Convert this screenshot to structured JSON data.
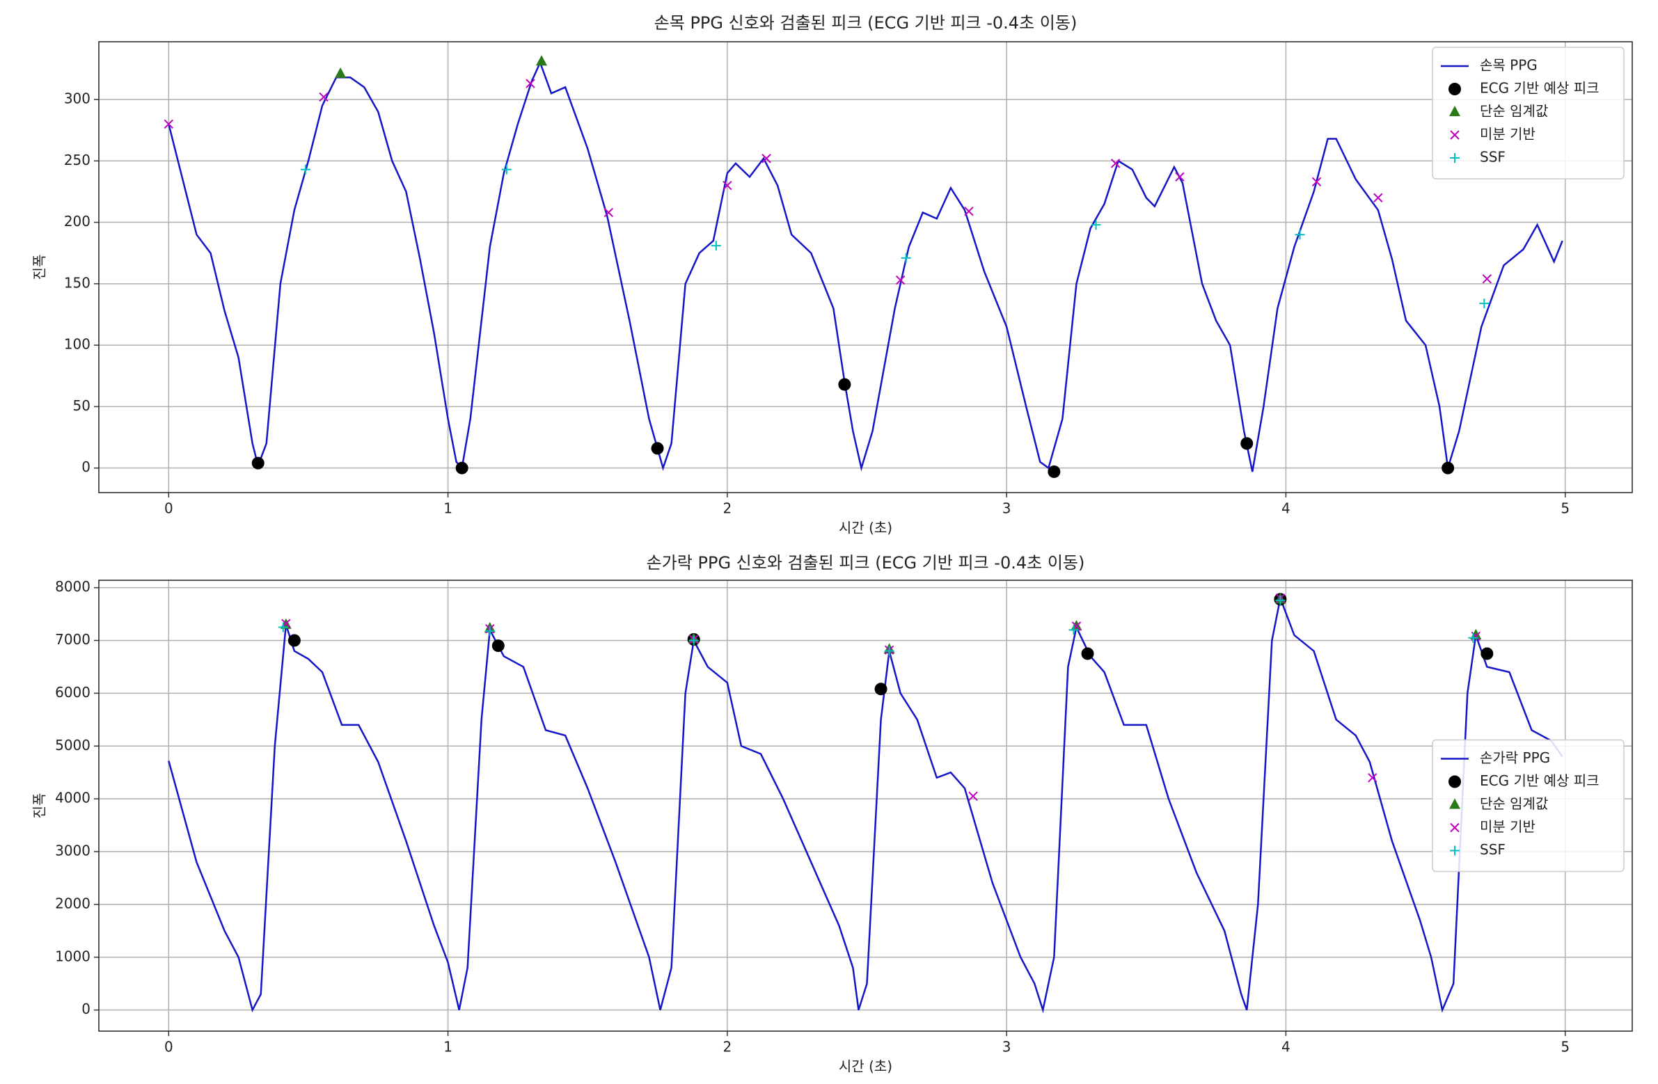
{
  "chart_data": [
    {
      "type": "line",
      "title": "손목 PPG 신호와 검출된 피크 (ECG 기반 피크 -0.4초 이동)",
      "xlabel": "시간 (초)",
      "ylabel": "진폭",
      "xlim": [
        -0.25,
        5.24
      ],
      "ylim": [
        -20,
        347
      ],
      "xticks": [
        0,
        1,
        2,
        3,
        4,
        5
      ],
      "yticks": [
        0,
        50,
        100,
        150,
        200,
        250,
        300
      ],
      "grid": true,
      "legend": "upper right",
      "series": [
        {
          "name": "손목 PPG",
          "color": "#1515c8",
          "x": [
            0,
            0.1,
            0.15,
            0.2,
            0.25,
            0.3,
            0.32,
            0.35,
            0.4,
            0.45,
            0.5,
            0.55,
            0.6,
            0.65,
            0.7,
            0.75,
            0.8,
            0.85,
            0.9,
            0.95,
            1.0,
            1.03,
            1.05,
            1.08,
            1.15,
            1.2,
            1.25,
            1.3,
            1.33,
            1.37,
            1.42,
            1.5,
            1.57,
            1.65,
            1.72,
            1.77,
            1.8,
            1.85,
            1.9,
            1.95,
            2.0,
            2.03,
            2.08,
            2.13,
            2.18,
            2.23,
            2.3,
            2.38,
            2.42,
            2.45,
            2.48,
            2.52,
            2.6,
            2.65,
            2.7,
            2.75,
            2.8,
            2.85,
            2.92,
            3.0,
            3.07,
            3.12,
            3.15,
            3.2,
            3.25,
            3.3,
            3.35,
            3.4,
            3.45,
            3.5,
            3.53,
            3.6,
            3.63,
            3.7,
            3.75,
            3.8,
            3.85,
            3.88,
            3.92,
            3.97,
            4.03,
            4.1,
            4.15,
            4.18,
            4.25,
            4.33,
            4.38,
            4.43,
            4.5,
            4.55,
            4.58,
            4.62,
            4.7,
            4.78,
            4.85,
            4.9,
            4.96,
            4.99
          ],
          "values": [
            280,
            190,
            175,
            128,
            90,
            20,
            2,
            20,
            150,
            210,
            250,
            295,
            318,
            318,
            310,
            290,
            250,
            225,
            170,
            110,
            40,
            5,
            0,
            40,
            180,
            240,
            280,
            315,
            330,
            305,
            310,
            260,
            205,
            120,
            40,
            0,
            20,
            150,
            175,
            185,
            240,
            248,
            237,
            252,
            230,
            190,
            175,
            130,
            70,
            30,
            0,
            30,
            130,
            180,
            208,
            203,
            228,
            210,
            160,
            115,
            50,
            5,
            0,
            40,
            150,
            195,
            215,
            250,
            243,
            220,
            213,
            245,
            232,
            150,
            120,
            100,
            30,
            -3,
            50,
            130,
            180,
            225,
            268,
            268,
            235,
            210,
            170,
            120,
            100,
            50,
            0,
            30,
            115,
            165,
            178,
            198,
            168,
            185
          ]
        },
        {
          "name": "ECG 기반 예상 피크",
          "color": "#000000",
          "marker": "o",
          "x": [
            0.32,
            1.05,
            1.75,
            2.42,
            3.17,
            3.86,
            4.58
          ],
          "values": [
            4,
            0,
            16,
            68,
            -3,
            20,
            0
          ]
        },
        {
          "name": "단순 임계값",
          "color": "#2a7a1a",
          "marker": "^",
          "x": [
            0.615,
            1.335
          ],
          "values": [
            321,
            331
          ]
        },
        {
          "name": "미분 기반",
          "color": "#bf00bf",
          "marker": "x",
          "x": [
            0,
            0.555,
            1.295,
            1.575,
            2.0,
            2.14,
            2.62,
            2.865,
            3.39,
            3.62,
            4.11,
            4.33,
            4.72
          ],
          "values": [
            280,
            302,
            313,
            208,
            230,
            252,
            153,
            209,
            248,
            237,
            233,
            220,
            154
          ]
        },
        {
          "name": "SSF",
          "color": "#00bfbf",
          "marker": "+",
          "x": [
            0.49,
            1.21,
            1.96,
            2.64,
            3.32,
            4.05,
            4.71
          ],
          "values": [
            243,
            243,
            181,
            171,
            198,
            190,
            134
          ]
        }
      ]
    },
    {
      "type": "line",
      "title": "손가락 PPG 신호와 검출된 피크 (ECG 기반 피크 -0.4초 이동)",
      "xlabel": "시간 (초)",
      "ylabel": "진폭",
      "xlim": [
        -0.25,
        5.24
      ],
      "ylim": [
        -400,
        8140
      ],
      "xticks": [
        0,
        1,
        2,
        3,
        4,
        5
      ],
      "yticks": [
        0,
        1000,
        2000,
        3000,
        4000,
        5000,
        6000,
        7000,
        8000
      ],
      "grid": true,
      "legend": "center right",
      "series": [
        {
          "name": "손가락 PPG",
          "color": "#1515c8",
          "x": [
            0,
            0.1,
            0.2,
            0.25,
            0.3,
            0.33,
            0.38,
            0.42,
            0.45,
            0.5,
            0.55,
            0.62,
            0.68,
            0.75,
            0.85,
            0.95,
            1.0,
            1.04,
            1.07,
            1.12,
            1.15,
            1.2,
            1.27,
            1.35,
            1.42,
            1.5,
            1.6,
            1.68,
            1.72,
            1.76,
            1.8,
            1.85,
            1.88,
            1.93,
            2.0,
            2.05,
            2.12,
            2.2,
            2.3,
            2.4,
            2.45,
            2.47,
            2.5,
            2.55,
            2.58,
            2.62,
            2.68,
            2.75,
            2.8,
            2.85,
            2.95,
            3.05,
            3.1,
            3.13,
            3.17,
            3.22,
            3.25,
            3.3,
            3.35,
            3.42,
            3.5,
            3.58,
            3.68,
            3.78,
            3.84,
            3.86,
            3.9,
            3.95,
            3.98,
            4.03,
            4.1,
            4.18,
            4.25,
            4.3,
            4.38,
            4.48,
            4.52,
            4.56,
            4.6,
            4.65,
            4.68,
            4.72,
            4.8,
            4.88,
            4.95,
            4.99
          ],
          "values": [
            4720,
            2800,
            1500,
            1000,
            0,
            300,
            5000,
            7300,
            6800,
            6650,
            6400,
            5400,
            5400,
            4700,
            3200,
            1600,
            900,
            0,
            800,
            5500,
            7200,
            6700,
            6500,
            5300,
            5200,
            4200,
            2800,
            1600,
            1000,
            0,
            800,
            6000,
            7000,
            6500,
            6200,
            5000,
            4850,
            4000,
            2800,
            1600,
            800,
            0,
            500,
            5500,
            6800,
            6000,
            5500,
            4400,
            4500,
            4200,
            2400,
            1000,
            500,
            0,
            1000,
            6500,
            7250,
            6700,
            6400,
            5400,
            5400,
            4000,
            2600,
            1500,
            300,
            0,
            2000,
            7000,
            7800,
            7100,
            6800,
            5500,
            5200,
            4700,
            3200,
            1700,
            1000,
            0,
            500,
            6000,
            7100,
            6500,
            6400,
            5300,
            5100,
            4800
          ]
        },
        {
          "name": "ECG 기반 예상 피크",
          "color": "#000000",
          "marker": "o",
          "x": [
            0.45,
            1.18,
            1.88,
            2.55,
            3.29,
            3.98,
            4.72
          ],
          "values": [
            7000,
            6900,
            7020,
            6080,
            6750,
            7780,
            6750
          ]
        },
        {
          "name": "단순 임계값",
          "color": "#2a7a1a",
          "marker": "^",
          "x": [
            0.42,
            1.15,
            1.88,
            2.58,
            3.25,
            3.98,
            4.68
          ],
          "values": [
            7300,
            7230,
            7030,
            6830,
            7270,
            7780,
            7100
          ]
        },
        {
          "name": "미분 기반",
          "color": "#bf00bf",
          "marker": "x",
          "x": [
            0.42,
            1.15,
            1.88,
            2.58,
            2.88,
            3.25,
            3.98,
            4.31,
            4.68
          ],
          "values": [
            7320,
            7220,
            7020,
            6820,
            4050,
            7270,
            7800,
            4400,
            7080
          ]
        },
        {
          "name": "SSF",
          "color": "#00bfbf",
          "marker": "+",
          "x": [
            0.41,
            1.15,
            1.88,
            2.58,
            3.24,
            3.98,
            4.67
          ],
          "values": [
            7250,
            7180,
            7000,
            6800,
            7200,
            7760,
            7050
          ]
        }
      ]
    }
  ]
}
